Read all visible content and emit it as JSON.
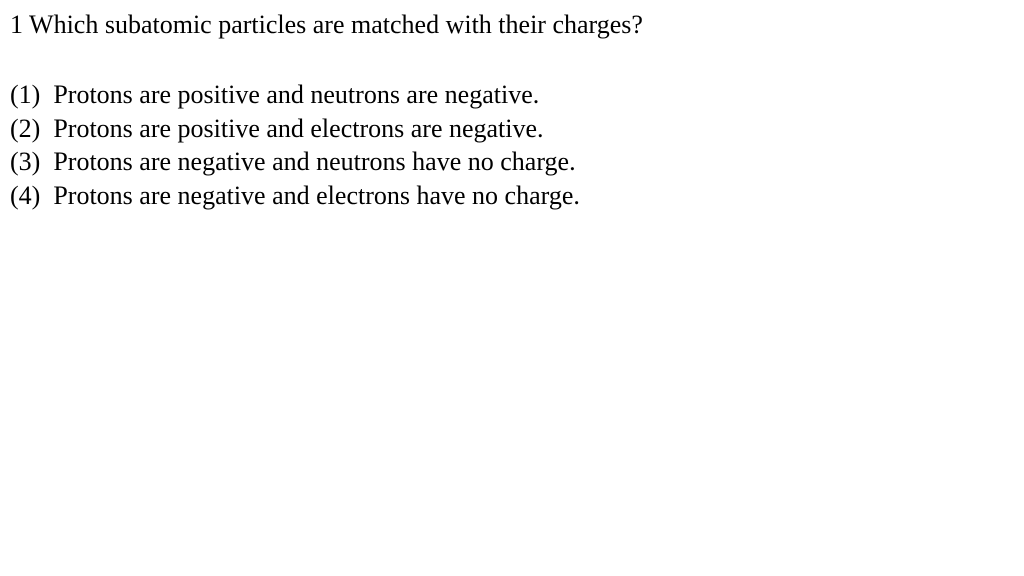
{
  "question": {
    "number": "1",
    "text": "Which subatomic particles are matched with their charges?",
    "fontsize": 26,
    "color": "#000000"
  },
  "options": [
    {
      "num": "(1)",
      "text": "Protons are positive and neutrons are negative."
    },
    {
      "num": "(2)",
      "text": "Protons are positive and electrons are negative."
    },
    {
      "num": "(3)",
      "text": "Protons are negative and neutrons have no charge."
    },
    {
      "num": "(4)",
      "text": "Protons are negative and electrons have no charge."
    }
  ],
  "background_color": "#ffffff",
  "font_family": "Times New Roman"
}
